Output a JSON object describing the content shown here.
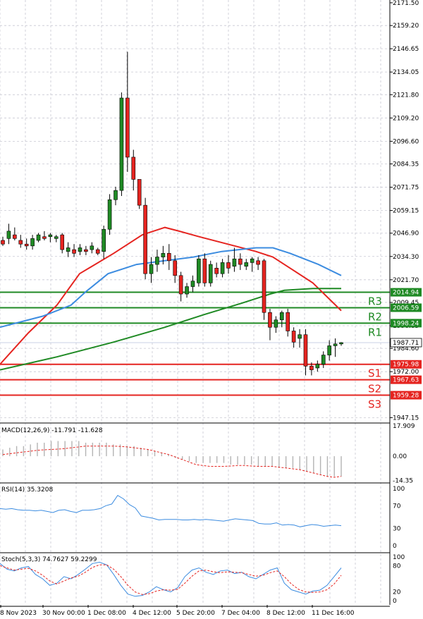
{
  "chart_data": [
    {
      "type": "candlestick",
      "panel": "price",
      "x_labels": [
        "8 Nov 2023",
        "30 Nov 00:00",
        "1 Dec 08:00",
        "4 Dec 12:00",
        "5 Dec 20:00",
        "7 Dec 04:00",
        "8 Dec 12:00",
        "11 Dec 16:00"
      ],
      "y_ticks": [
        "2171.50",
        "2159.20",
        "2146.65",
        "2134.05",
        "2121.80",
        "2109.20",
        "2096.60",
        "2084.35",
        "2071.75",
        "2059.15",
        "2046.90",
        "2034.30",
        "2021.70",
        "2009.45",
        "1996.85",
        "1984.60",
        "1972.00",
        "1947.15"
      ],
      "ylim": [
        1945,
        2173
      ],
      "candles": [
        [
          2043,
          2045,
          2040,
          2041
        ],
        [
          2044,
          2052,
          2041,
          2048
        ],
        [
          2046,
          2050,
          2043,
          2044
        ],
        [
          2043,
          2046,
          2039,
          2041
        ],
        [
          2041,
          2044,
          2038,
          2040
        ],
        [
          2040,
          2046,
          2038,
          2044
        ],
        [
          2043,
          2047,
          2042,
          2046
        ],
        [
          2045,
          2048,
          2043,
          2044
        ],
        [
          2045,
          2047,
          2042,
          2046
        ],
        [
          2044,
          2046,
          2042,
          2045
        ],
        [
          2046,
          2047,
          2036,
          2038
        ],
        [
          2037,
          2042,
          2034,
          2039
        ],
        [
          2038,
          2041,
          2034,
          2036
        ],
        [
          2037,
          2041,
          2035,
          2039
        ],
        [
          2038,
          2040,
          2035,
          2037
        ],
        [
          2038,
          2042,
          2036,
          2040
        ],
        [
          2038,
          2039,
          2035,
          2036
        ],
        [
          2037,
          2051,
          2033,
          2049
        ],
        [
          2049,
          2068,
          2046,
          2065
        ],
        [
          2065,
          2072,
          2062,
          2070
        ],
        [
          2070,
          2123,
          2067,
          2120
        ],
        [
          2120,
          2145,
          2080,
          2088
        ],
        [
          2088,
          2092,
          2070,
          2076
        ],
        [
          2076,
          2075,
          2060,
          2062
        ],
        [
          2062,
          2066,
          2022,
          2025
        ],
        [
          2025,
          2034,
          2020,
          2030
        ],
        [
          2030,
          2038,
          2026,
          2034
        ],
        [
          2034,
          2040,
          2030,
          2036
        ],
        [
          2036,
          2041,
          2027,
          2032
        ],
        [
          2032,
          2035,
          2020,
          2024
        ],
        [
          2024,
          2026,
          2010,
          2014
        ],
        [
          2014,
          2020,
          2012,
          2018
        ],
        [
          2018,
          2024,
          2015,
          2021
        ],
        [
          2020,
          2035,
          2018,
          2033
        ],
        [
          2033,
          2036,
          2018,
          2020
        ],
        [
          2020,
          2032,
          2018,
          2030
        ],
        [
          2028,
          2031,
          2023,
          2025
        ],
        [
          2025,
          2033,
          2023,
          2031
        ],
        [
          2031,
          2035,
          2025,
          2028
        ],
        [
          2029,
          2039,
          2026,
          2033
        ],
        [
          2033,
          2036,
          2027,
          2030
        ],
        [
          2029,
          2033,
          2027,
          2031
        ],
        [
          2031,
          2034,
          2026,
          2033
        ],
        [
          2032,
          2034,
          2027,
          2030
        ],
        [
          2032,
          2033,
          2000,
          2004
        ],
        [
          2004,
          2006,
          1989,
          1996
        ],
        [
          1996,
          2002,
          1993,
          2000
        ],
        [
          2000,
          2005,
          1996,
          2004
        ],
        [
          2004,
          2006,
          1991,
          1994
        ],
        [
          1994,
          1996,
          1985,
          1988
        ],
        [
          1990,
          1995,
          1985,
          1992
        ],
        [
          1992,
          1995,
          1970,
          1975
        ],
        [
          1975,
          1977,
          1970,
          1973
        ],
        [
          1974,
          1978,
          1972,
          1976
        ],
        [
          1976,
          1983,
          1974,
          1981
        ],
        [
          1981,
          1989,
          1978,
          1986
        ],
        [
          1986,
          1990,
          1980,
          1987
        ],
        [
          1987,
          1988,
          1986,
          1987.71
        ]
      ],
      "moving_averages": [
        {
          "color": "#e52420",
          "points": [
            [
              0,
              1976
            ],
            [
              10,
              1993
            ],
            [
              20,
              2008
            ],
            [
              28,
              2025
            ],
            [
              40,
              2036
            ],
            [
              50,
              2046
            ],
            [
              58,
              2050
            ],
            [
              63,
              2048
            ],
            [
              70,
              2045
            ],
            [
              80,
              2041
            ],
            [
              90,
              2037
            ],
            [
              96,
              2034
            ],
            [
              102,
              2028
            ],
            [
              110,
              2020
            ],
            [
              120,
              2005
            ]
          ]
        },
        {
          "color": "#3c8ce0",
          "points": [
            [
              0,
              1996
            ],
            [
              15,
              2002
            ],
            [
              25,
              2008
            ],
            [
              30,
              2015
            ],
            [
              38,
              2025
            ],
            [
              48,
              2030
            ],
            [
              58,
              2032
            ],
            [
              68,
              2034
            ],
            [
              78,
              2037
            ],
            [
              90,
              2039
            ],
            [
              96,
              2039
            ],
            [
              102,
              2036
            ],
            [
              112,
              2030
            ],
            [
              120,
              2024
            ]
          ]
        },
        {
          "color": "#1f8a24",
          "points": [
            [
              0,
              1973
            ],
            [
              20,
              1980
            ],
            [
              40,
              1988
            ],
            [
              58,
              1996
            ],
            [
              72,
              2003
            ],
            [
              85,
              2009
            ],
            [
              95,
              2014
            ],
            [
              100,
              2016
            ],
            [
              110,
              2017
            ],
            [
              120,
              2017
            ]
          ]
        }
      ],
      "levels": [
        {
          "name": "R3",
          "value": 2014.94,
          "label": "2014.94",
          "color": "#1f8a24"
        },
        {
          "name": "R2",
          "value": 2006.59,
          "label": "2006.59",
          "color": "#1f8a24"
        },
        {
          "name": "R1",
          "value": 1998.24,
          "label": "1998.24",
          "color": "#1f8a24"
        },
        {
          "name": "S1",
          "value": 1975.98,
          "label": "1975.98",
          "color": "#e52420"
        },
        {
          "name": "S2",
          "value": 1967.63,
          "label": "1967.63",
          "color": "#e52420"
        },
        {
          "name": "S3",
          "value": 1959.28,
          "label": "1959.28",
          "color": "#e52420"
        }
      ],
      "last_price": {
        "value": 1987.71,
        "label": "1987.71"
      }
    },
    {
      "type": "bar+line",
      "panel": "macd",
      "title": "MACD(12,26,9) -11.791 -11.628",
      "y_ticks": [
        "17.909",
        "0.00",
        "-14.35"
      ],
      "ylim": [
        -15,
        18
      ],
      "histogram": [
        4,
        5,
        6,
        6,
        7,
        8,
        8,
        9,
        9,
        9,
        9,
        9,
        8,
        8,
        8,
        8,
        7,
        7,
        6,
        6,
        5,
        4,
        3,
        2,
        1,
        -1,
        -2,
        -3,
        -4,
        -4,
        -4,
        -4,
        -4,
        -5,
        -5,
        -5,
        -5,
        -6,
        -6,
        -6,
        -7,
        -7,
        -7,
        -8,
        -9,
        -10,
        -11,
        -12,
        -12,
        -12
      ],
      "signal": [
        1,
        1.5,
        2,
        2.5,
        3,
        3.5,
        3.8,
        4,
        4.2,
        4.5,
        5,
        5.5,
        6,
        6,
        6,
        6,
        6,
        5.8,
        5.5,
        5,
        4.5,
        4,
        3,
        2,
        1,
        -0.5,
        -2,
        -3.5,
        -5,
        -5.5,
        -6,
        -6,
        -6,
        -5.8,
        -5.5,
        -5.5,
        -5.8,
        -6,
        -6,
        -6,
        -6.5,
        -7,
        -7.5,
        -8,
        -9,
        -10,
        -11,
        -12,
        -12.5,
        -12
      ],
      "histogram_color": "#b4b4b4",
      "signal_color": "#e52420"
    },
    {
      "type": "line",
      "panel": "rsi",
      "title": "RSI(14) 35.3208",
      "y_ticks": [
        "100",
        "70",
        "30",
        "0"
      ],
      "ylim": [
        0,
        100
      ],
      "values": [
        65,
        64,
        65,
        63,
        62,
        62,
        61,
        62,
        60,
        58,
        62,
        63,
        60,
        58,
        62,
        62,
        63,
        65,
        70,
        73,
        88,
        82,
        72,
        66,
        52,
        50,
        48,
        45,
        46,
        46,
        46,
        45,
        45,
        46,
        45,
        46,
        45,
        44,
        43,
        45,
        47,
        46,
        45,
        44,
        39,
        38,
        38,
        40,
        36,
        37,
        36,
        33,
        35,
        37,
        36,
        34,
        35,
        36,
        35
      ],
      "color": "#3c8ce0"
    },
    {
      "type": "line",
      "panel": "stochastic",
      "title": "Stoch(5,3,3) 74.7627 59.2299",
      "y_ticks": [
        "100",
        "80",
        "20",
        "0"
      ],
      "ylim": [
        0,
        100
      ],
      "k": [
        85,
        72,
        68,
        75,
        78,
        60,
        50,
        35,
        40,
        55,
        50,
        60,
        72,
        85,
        88,
        82,
        60,
        35,
        15,
        10,
        12,
        20,
        32,
        25,
        20,
        30,
        55,
        70,
        75,
        65,
        60,
        68,
        70,
        62,
        65,
        55,
        50,
        60,
        70,
        75,
        40,
        25,
        20,
        15,
        22,
        24,
        35,
        55,
        75
      ],
      "d": [
        80,
        75,
        70,
        72,
        74,
        68,
        58,
        45,
        38,
        45,
        52,
        56,
        65,
        76,
        82,
        82,
        72,
        55,
        35,
        20,
        14,
        16,
        22,
        25,
        24,
        26,
        40,
        56,
        68,
        70,
        66,
        64,
        66,
        65,
        64,
        60,
        56,
        58,
        64,
        68,
        55,
        38,
        26,
        20,
        19,
        20,
        25,
        38,
        58
      ],
      "k_color": "#3c8ce0",
      "d_color": "#e52420"
    }
  ]
}
